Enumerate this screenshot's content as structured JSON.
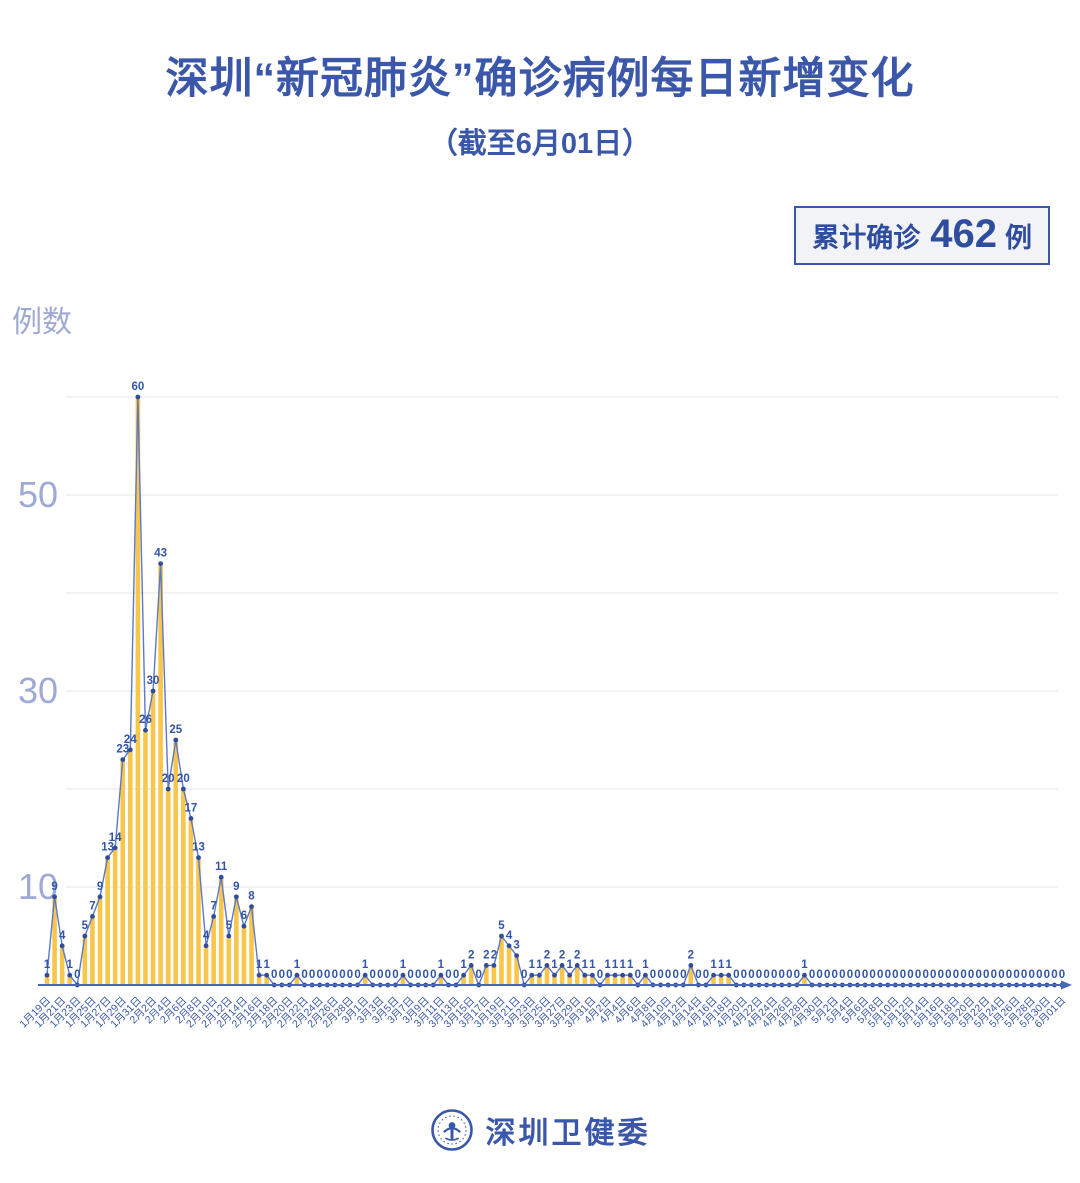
{
  "header": {
    "title": "深圳“新冠肺炎”确诊病例每日新增变化",
    "subtitle": "（截至6月01日）"
  },
  "summary_badge": {
    "label": "累计确诊",
    "value": "462",
    "unit": "例"
  },
  "footer": {
    "org_name": "深圳卫健委",
    "logo_icon": "shenzhen-health-commission-emblem"
  },
  "colors": {
    "title": "#3A57A9",
    "bar": "#F8C64A",
    "line": "#5B79C9",
    "dot": "#2F4D9B",
    "value_label": "#3355A5",
    "axis_label": "#9EA9D6",
    "x_label": "#3D59A8",
    "gridline": "#E3E4E8",
    "axis": "#4A67B5",
    "badge_bg": "#F2F3F6",
    "badge_border": "#3A57A9"
  },
  "chart_data": {
    "type": "bar",
    "title": "深圳“新冠肺炎”确诊病例每日新增变化",
    "subtitle": "（截至6月01日）",
    "ylabel": "例数",
    "xlabel": "",
    "ylim": [
      0,
      62
    ],
    "yticks": [
      10,
      30,
      50
    ],
    "gridlines": [
      10,
      20,
      30,
      40,
      50,
      60
    ],
    "grid": "horizontal",
    "legend": "none",
    "total_cases": 462,
    "x_label_step": 2,
    "x_labels": [
      "1月19日",
      "1月21日",
      "1月23日",
      "1月25日",
      "1月27日",
      "1月29日",
      "1月31日",
      "2月2日",
      "2月4日",
      "2月6日",
      "2月8日",
      "2月10日",
      "2月12日",
      "2月14日",
      "2月16日",
      "2月18日",
      "2月20日",
      "2月22日",
      "2月24日",
      "2月26日",
      "2月28日",
      "3月1日",
      "3月3日",
      "3月5日",
      "3月7日",
      "3月9日",
      "3月11日",
      "3月13日",
      "3月15日",
      "3月17日",
      "3月19日",
      "3月21日",
      "3月23日",
      "3月25日",
      "3月27日",
      "3月29日",
      "3月31日",
      "4月2日",
      "4月4日",
      "4月6日",
      "4月8日",
      "4月10日",
      "4月12日",
      "4月14日",
      "4月16日",
      "4月18日",
      "4月20日",
      "4月22日",
      "4月24日",
      "4月26日",
      "4月28日",
      "4月30日",
      "5月2日",
      "5月4日",
      "5月6日",
      "5月8日",
      "5月10日",
      "5月12日",
      "5月14日",
      "5月16日",
      "5月18日",
      "5月20日",
      "5月22日",
      "5月24日",
      "5月26日",
      "5月28日",
      "5月30日",
      "6月01日"
    ],
    "values": [
      1,
      9,
      4,
      1,
      0,
      5,
      7,
      9,
      13,
      14,
      23,
      24,
      60,
      26,
      30,
      43,
      20,
      25,
      20,
      17,
      13,
      4,
      7,
      11,
      5,
      9,
      6,
      8,
      1,
      1,
      0,
      0,
      0,
      1,
      0,
      0,
      0,
      0,
      0,
      0,
      0,
      0,
      1,
      0,
      0,
      0,
      0,
      1,
      0,
      0,
      0,
      0,
      1,
      0,
      0,
      1,
      2,
      0,
      2,
      2,
      5,
      4,
      3,
      0,
      1,
      1,
      2,
      1,
      2,
      1,
      2,
      1,
      1,
      0,
      1,
      1,
      1,
      1,
      0,
      1,
      0,
      0,
      0,
      0,
      0,
      2,
      0,
      0,
      1,
      1,
      1,
      0,
      0,
      0,
      0,
      0,
      0,
      0,
      0,
      0,
      1,
      0,
      0,
      0,
      0,
      0,
      0,
      0,
      0,
      0,
      0,
      0,
      0,
      0,
      0,
      0,
      0,
      0,
      0,
      0,
      0,
      0,
      0,
      0,
      0,
      0,
      0,
      0,
      0,
      0,
      0,
      0,
      0,
      0,
      0
    ]
  }
}
